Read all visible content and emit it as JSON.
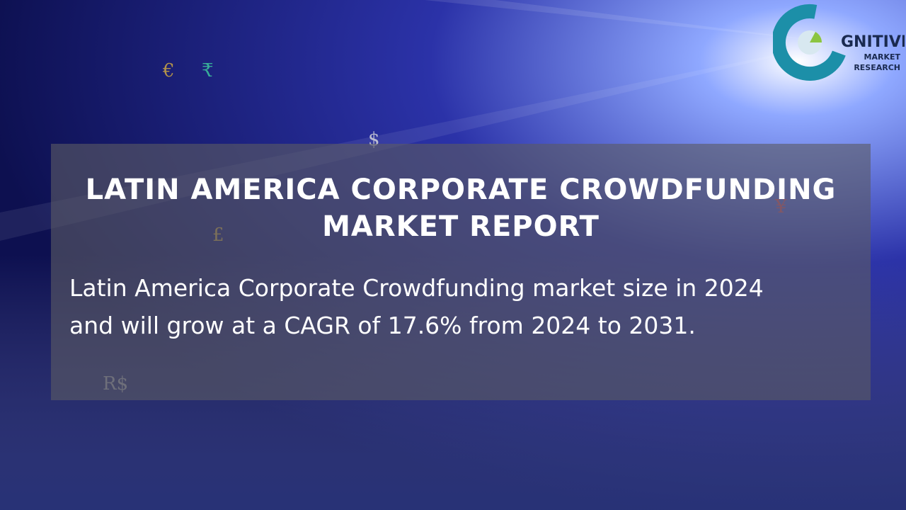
{
  "logo": {
    "brand": "GNITIVE",
    "line1": "MARKET",
    "line2": "RESEARCH"
  },
  "banner": {
    "title_line1": "LATIN AMERICA CORPORATE CROWDFUNDING",
    "title_line2": "MARKET REPORT",
    "body_line1": "Latin America Corporate Crowdfunding market size in 2024",
    "body_line2": "and will grow at a CAGR of 17.6% from 2024 to 2031."
  },
  "symbols": [
    "€",
    "₹",
    "£",
    "$",
    "¥",
    "R$"
  ]
}
